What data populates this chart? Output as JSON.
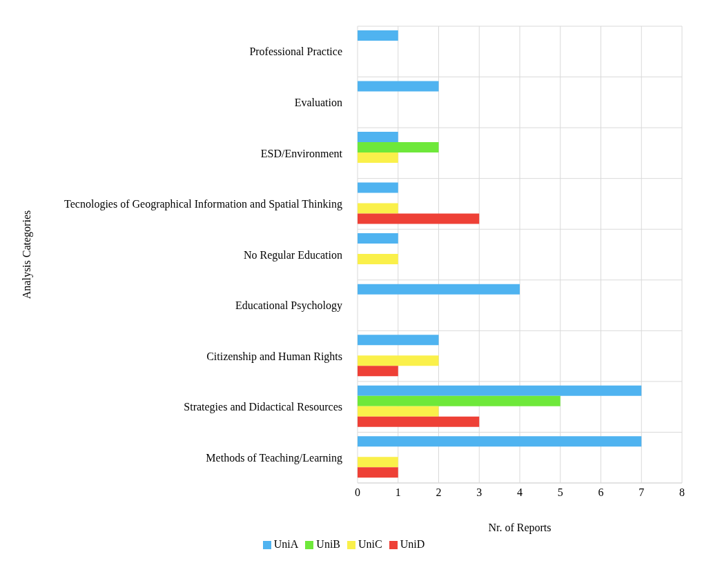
{
  "chart_data": {
    "type": "bar",
    "orientation": "horizontal",
    "xlabel": "Nr. of Reports",
    "ylabel": "Analysis Categories",
    "categories": [
      "Professional Practice",
      "Evaluation",
      "ESD/Environment",
      "Tecnologies of Geographical Information and Spatial Thinking",
      "No Regular Education",
      "Educational Psychology",
      "Citizenship and Human Rights",
      "Strategies and Didactical Resources",
      "Methods of Teaching/Learning"
    ],
    "series": [
      {
        "name": "UniA",
        "color": "#4fb3f0",
        "values": [
          1,
          2,
          1,
          1,
          1,
          4,
          2,
          7,
          7
        ]
      },
      {
        "name": "UniB",
        "color": "#6ee83a",
        "values": [
          null,
          null,
          2,
          null,
          null,
          null,
          null,
          5,
          null
        ]
      },
      {
        "name": "UniC",
        "color": "#faf04a",
        "values": [
          null,
          null,
          1,
          1,
          1,
          null,
          2,
          2,
          1
        ]
      },
      {
        "name": "UniD",
        "color": "#ee4036",
        "values": [
          null,
          null,
          null,
          3,
          null,
          null,
          1,
          3,
          1
        ]
      }
    ],
    "xlim": [
      0,
      8
    ],
    "xticks": [
      0,
      1,
      2,
      3,
      4,
      5,
      6,
      7,
      8
    ],
    "grid": true,
    "legend": "bottom"
  }
}
